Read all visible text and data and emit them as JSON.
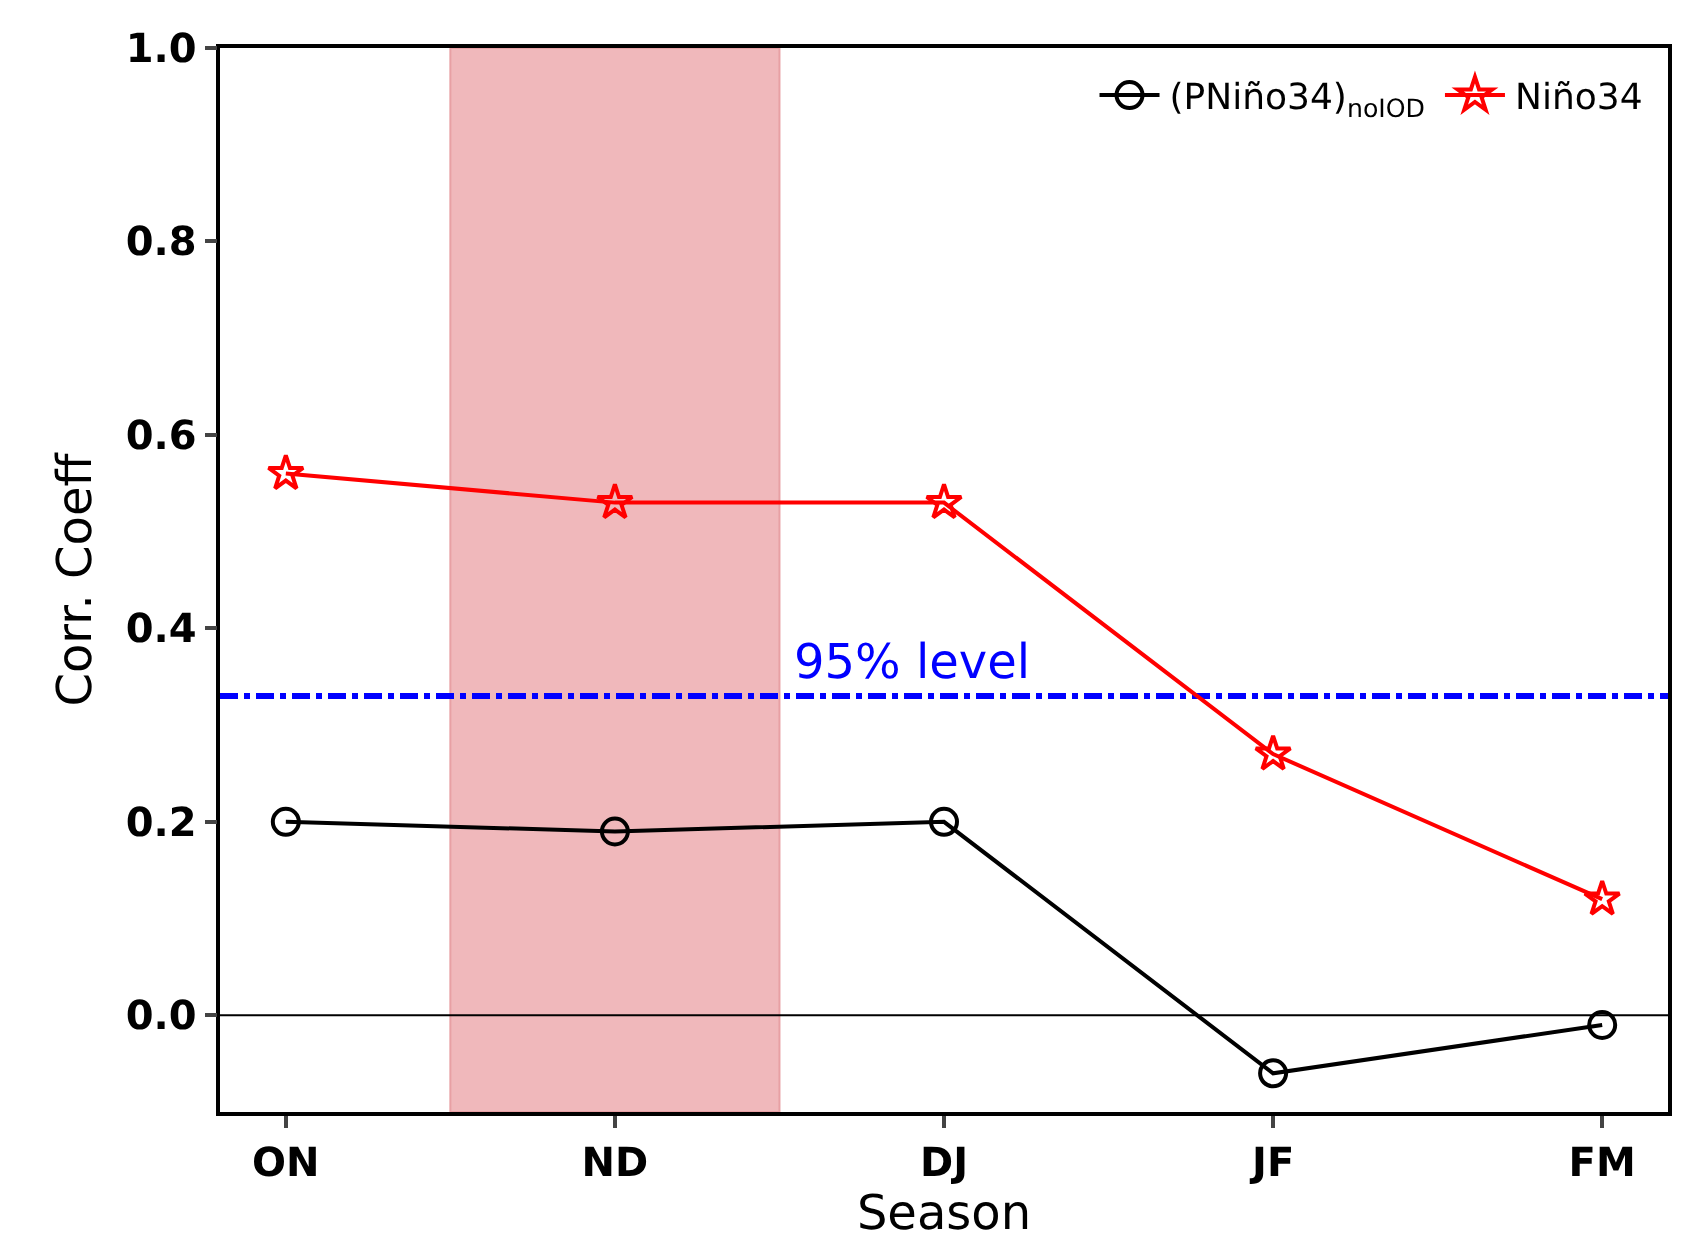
{
  "chart_data": {
    "type": "line",
    "xlabel": "Season",
    "ylabel": "Corr. Coeff",
    "categories": [
      "ON",
      "ND",
      "DJ",
      "JF",
      "FM"
    ],
    "series": [
      {
        "name": "(PNiño34)$_{noIOD}$",
        "color": "#000000",
        "marker": "circle",
        "values": [
          0.2,
          0.19,
          0.2,
          -0.06,
          -0.01
        ]
      },
      {
        "name": "Niño34",
        "color": "#ff0000",
        "marker": "star",
        "values": [
          0.56,
          0.53,
          0.53,
          0.27,
          0.12
        ]
      }
    ],
    "ylim": [
      -0.1,
      1.0
    ],
    "yticks": [
      {
        "value": 0,
        "label": "0.0"
      },
      0.2,
      0.4,
      0.6,
      0.8,
      {
        "value": 1,
        "label": "1.0"
      }
    ],
    "ref_lines": [
      {
        "axis": "y",
        "value": 0.33,
        "label": "95% level",
        "color": "#0000ff",
        "line_style": "dashdot"
      },
      {
        "axis": "y",
        "value": 0,
        "color": "#000000",
        "line_style": "solid"
      }
    ],
    "grid": false,
    "legend": "top right"
  }
}
